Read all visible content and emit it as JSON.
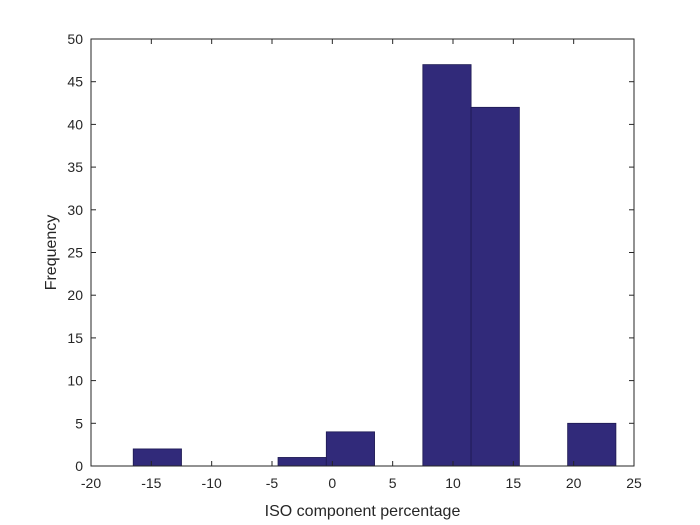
{
  "chart_data": {
    "type": "bar",
    "title": "",
    "xlabel": "ISO component percentage",
    "ylabel": "Frequency",
    "xlim": [
      -20,
      25
    ],
    "ylim": [
      0,
      50
    ],
    "xticks": [
      -20,
      -15,
      -10,
      -5,
      0,
      5,
      10,
      15,
      20,
      25
    ],
    "yticks": [
      0,
      5,
      10,
      15,
      20,
      25,
      30,
      35,
      40,
      45,
      50
    ],
    "bin_edges": [
      -16.5,
      -12.5,
      -8.5,
      -4.5,
      -0.5,
      3.5,
      7.5,
      11.5,
      15.5,
      19.5,
      23.5
    ],
    "values": [
      2,
      0,
      0,
      1,
      4,
      0,
      47,
      42,
      0,
      5
    ],
    "grid": false,
    "box": true,
    "bar_color": "#312a7a",
    "edge_color": "#1e1a52"
  }
}
